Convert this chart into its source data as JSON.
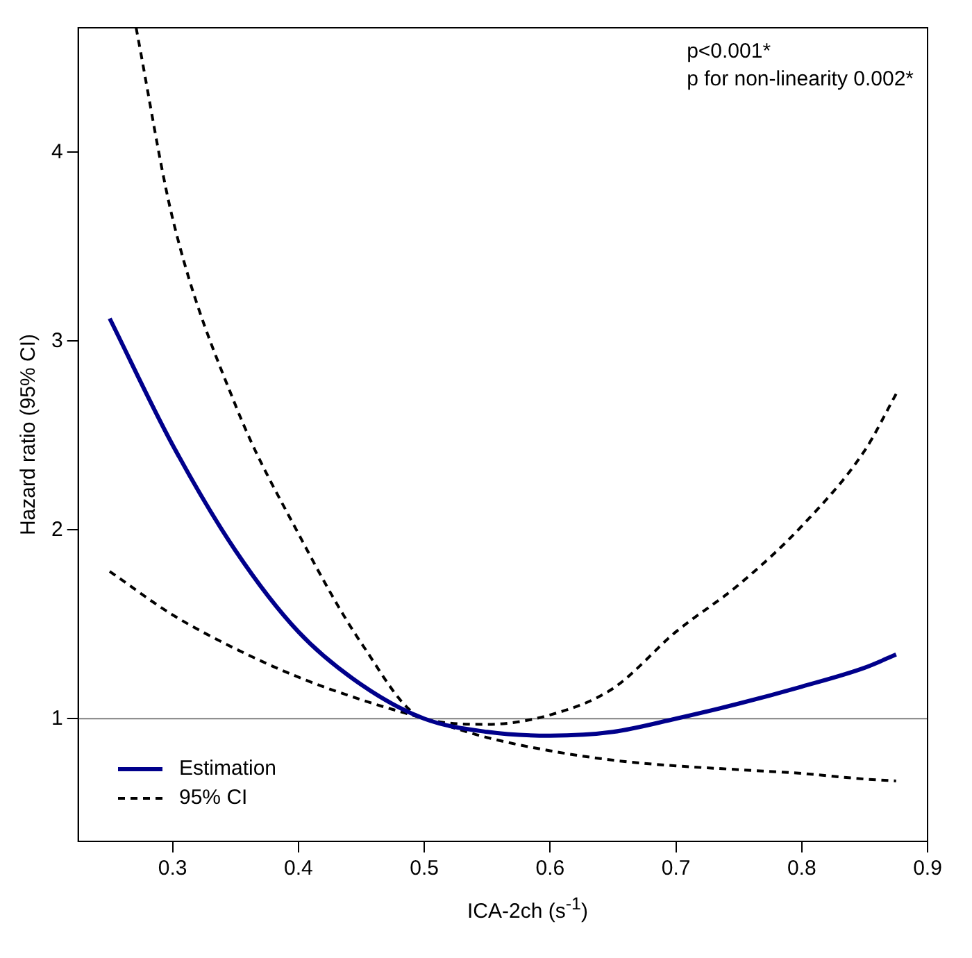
{
  "chart_data": {
    "type": "line",
    "xlabel": "ICA-2ch (s$^{-1}$)",
    "ylabel": "Hazard ratio (95% CI)",
    "x": [
      0.25,
      0.3,
      0.35,
      0.4,
      0.45,
      0.5,
      0.55,
      0.6,
      0.65,
      0.7,
      0.75,
      0.8,
      0.85,
      0.875
    ],
    "series": [
      {
        "name": "Estimation",
        "color": "#00008b",
        "line_style": "solid",
        "values": [
          3.12,
          2.45,
          1.89,
          1.46,
          1.18,
          1.0,
          0.93,
          0.91,
          0.93,
          1.0,
          1.08,
          1.17,
          1.27,
          1.34
        ]
      },
      {
        "name": "95% CI",
        "color": "#000000",
        "line_style": "dashed",
        "x": [
          0.271,
          0.3,
          0.35,
          0.4,
          0.45,
          0.5,
          0.55,
          0.6,
          0.65,
          0.7,
          0.75,
          0.8,
          0.85,
          0.875
        ],
        "values": [
          4.66,
          3.65,
          2.66,
          1.98,
          1.4,
          1.0,
          0.97,
          1.02,
          1.16,
          1.46,
          1.71,
          2.02,
          2.42,
          2.72
        ]
      },
      {
        "color": "#000000",
        "line_style": "dashed",
        "values": [
          1.78,
          1.55,
          1.37,
          1.22,
          1.1,
          1.0,
          0.9,
          0.83,
          0.78,
          0.75,
          0.73,
          0.71,
          0.68,
          0.67
        ]
      }
    ],
    "xlim": [
      0.225,
      0.9
    ],
    "xticks": [
      0.3,
      0.4,
      0.5,
      0.6,
      0.7,
      0.8,
      0.9
    ],
    "ylim": [
      0.35,
      4.66
    ],
    "yticks": [
      1,
      2,
      3,
      4
    ],
    "ref_lines": [
      {
        "axis": "y",
        "value": 1,
        "color": "#808080"
      }
    ],
    "annotations": [
      "p<0.001*",
      "p for non-linearity 0.002*"
    ],
    "grid": false,
    "legend": "bottom left",
    "marker": "none"
  }
}
